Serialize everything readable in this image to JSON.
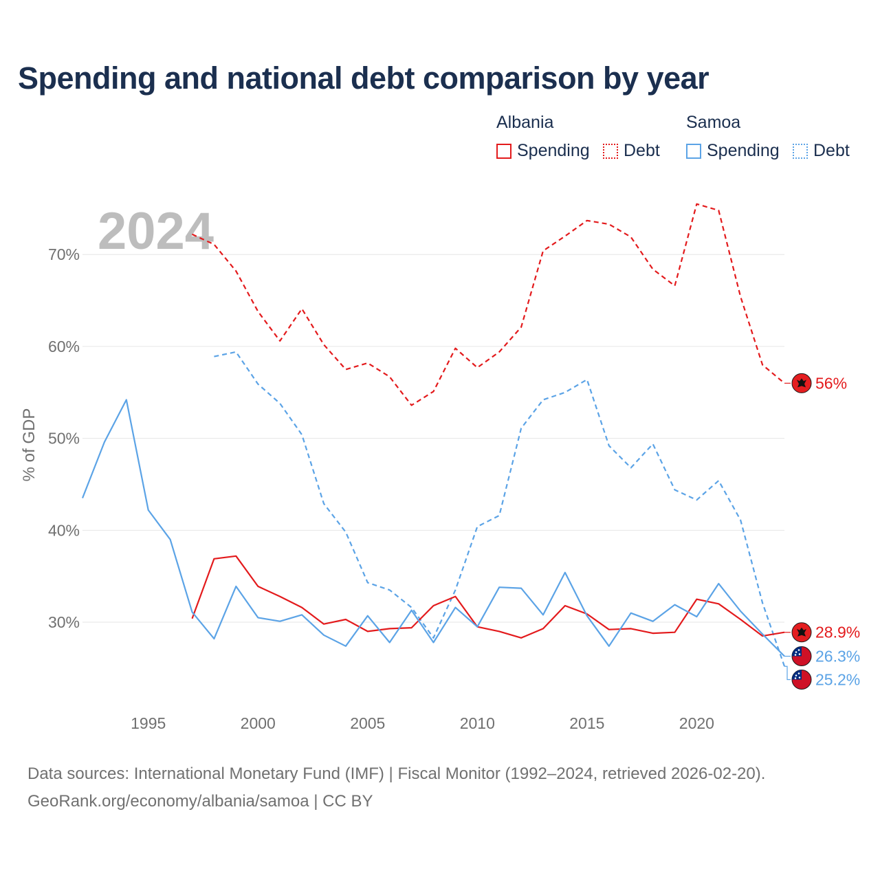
{
  "chart_data": {
    "type": "line",
    "title": "Spending and national debt comparison by year",
    "ylabel": "% of GDP",
    "xlabel": "",
    "highlight_year": "2024",
    "xlim": [
      1992,
      2024
    ],
    "ylim": [
      22,
      76
    ],
    "x_ticks": [
      1995,
      2000,
      2005,
      2010,
      2015,
      2020
    ],
    "x_tick_labels": [
      "1995",
      "2000",
      "2005",
      "2010",
      "2015",
      "2020"
    ],
    "y_ticks": [
      30,
      40,
      50,
      60,
      70
    ],
    "y_tick_labels": [
      "30%",
      "40%",
      "50%",
      "60%",
      "70%"
    ],
    "legend": {
      "groups": [
        {
          "title": "Albania",
          "items": [
            "Spending",
            "Debt"
          ]
        },
        {
          "title": "Samoa",
          "items": [
            "Spending",
            "Debt"
          ]
        }
      ]
    },
    "series": [
      {
        "name": "Albania Debt",
        "country": "Albania",
        "metric": "Debt",
        "color": "#e31a1c",
        "dash": true,
        "x": [
          1997,
          1998,
          1999,
          2000,
          2001,
          2002,
          2003,
          2004,
          2005,
          2006,
          2007,
          2008,
          2009,
          2010,
          2011,
          2012,
          2013,
          2014,
          2015,
          2016,
          2017,
          2018,
          2019,
          2020,
          2021,
          2022,
          2023,
          2024
        ],
        "values": [
          72.2,
          71.1,
          68.2,
          63.8,
          60.6,
          64.1,
          60.2,
          57.5,
          58.2,
          56.7,
          53.6,
          55.1,
          59.8,
          57.7,
          59.4,
          62.1,
          70.4,
          72.0,
          73.7,
          73.3,
          71.9,
          68.4,
          66.6,
          75.5,
          74.8,
          65.4,
          58.0,
          56.0
        ],
        "end_label": "56%"
      },
      {
        "name": "Samoa Debt",
        "country": "Samoa",
        "metric": "Debt",
        "color": "#5ba3e6",
        "dash": true,
        "x": [
          1998,
          1999,
          2000,
          2001,
          2002,
          2003,
          2004,
          2005,
          2006,
          2007,
          2008,
          2009,
          2010,
          2011,
          2012,
          2013,
          2014,
          2015,
          2016,
          2017,
          2018,
          2019,
          2020,
          2021,
          2022,
          2023,
          2024
        ],
        "values": [
          58.9,
          59.4,
          55.9,
          53.8,
          50.4,
          42.9,
          39.8,
          34.3,
          33.5,
          31.6,
          28.3,
          33.5,
          40.4,
          41.6,
          51.1,
          54.2,
          55.0,
          56.4,
          49.2,
          46.8,
          49.4,
          44.4,
          43.3,
          45.4,
          41.1,
          32.1,
          25.2
        ],
        "end_label": "25.2%"
      },
      {
        "name": "Albania Spending",
        "country": "Albania",
        "metric": "Spending",
        "color": "#e31a1c",
        "dash": false,
        "x": [
          1997,
          1998,
          1999,
          2000,
          2001,
          2002,
          2003,
          2004,
          2005,
          2006,
          2007,
          2008,
          2009,
          2010,
          2011,
          2012,
          2013,
          2014,
          2015,
          2016,
          2017,
          2018,
          2019,
          2020,
          2021,
          2022,
          2023,
          2024
        ],
        "values": [
          30.4,
          36.9,
          37.2,
          33.9,
          32.8,
          31.6,
          29.8,
          30.3,
          29.0,
          29.3,
          29.4,
          31.8,
          32.8,
          29.5,
          29.0,
          28.3,
          29.3,
          31.8,
          30.9,
          29.2,
          29.3,
          28.8,
          28.9,
          32.5,
          32.0,
          30.3,
          28.5,
          28.9
        ],
        "end_label": "28.9%"
      },
      {
        "name": "Samoa Spending",
        "country": "Samoa",
        "metric": "Spending",
        "color": "#5ba3e6",
        "dash": false,
        "x": [
          1992,
          1993,
          1994,
          1995,
          1996,
          1997,
          1998,
          1999,
          2000,
          2001,
          2002,
          2003,
          2004,
          2005,
          2006,
          2007,
          2008,
          2009,
          2010,
          2011,
          2012,
          2013,
          2014,
          2015,
          2016,
          2017,
          2018,
          2019,
          2020,
          2021,
          2022,
          2023,
          2024
        ],
        "values": [
          43.5,
          49.6,
          54.2,
          42.2,
          39.0,
          31.1,
          28.2,
          33.9,
          30.5,
          30.1,
          30.8,
          28.6,
          27.4,
          30.7,
          27.8,
          31.3,
          27.8,
          31.6,
          29.5,
          33.8,
          33.7,
          30.8,
          35.4,
          30.7,
          27.4,
          31.0,
          30.1,
          31.9,
          30.6,
          34.2,
          31.2,
          28.7,
          26.3
        ],
        "end_label": "26.3%"
      }
    ]
  },
  "legend_labels": {
    "albania_title": "Albania",
    "albania_spending": "Spending",
    "albania_debt": "Debt",
    "samoa_title": "Samoa",
    "samoa_spending": "Spending",
    "samoa_debt": "Debt"
  },
  "footer": {
    "sources_line": "Data sources: International Monetary Fund (IMF) | Fiscal Monitor (1992–2024, retrieved 2026-02-20).",
    "credit_line": "GeoRank.org/economy/albania/samoa | CC BY"
  },
  "colors": {
    "albania": "#e31a1c",
    "samoa": "#5ba3e6",
    "title": "#1b2f4f",
    "axis_text": "#707070",
    "grid": "#e6e6e6",
    "watermark": "#bdbdbd"
  }
}
